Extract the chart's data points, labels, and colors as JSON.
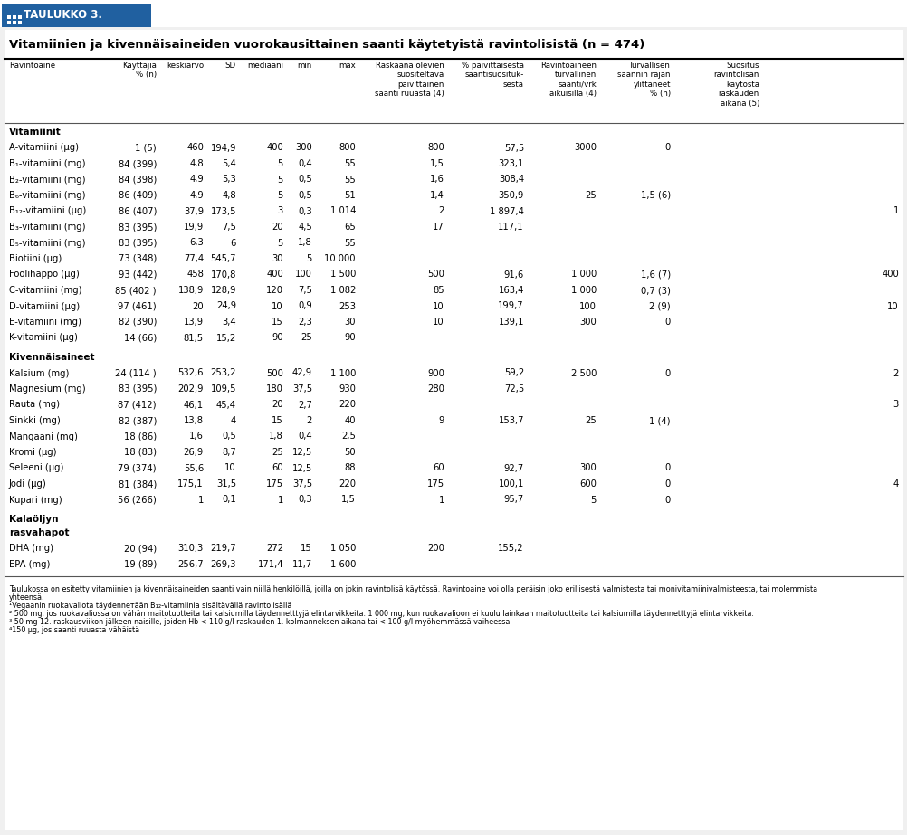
{
  "title": "Vitamiinien ja kivennäisaineiden vuorokausittainen saanti käytetyistä ravintolisistä (n = 474)",
  "table_header": "TAULUKKO 3.",
  "col_headers": [
    "Ravintoaine",
    "Käyttäjiä\n% (n)",
    "keskiarvo",
    "SD",
    "mediaani",
    "min",
    "max",
    "Raskaana olevien\nsuositeltava\npäivittäinen\nsaanti ruuasta (4)",
    "% päivittäisestä\nsaantisuosituk-\nsesta",
    "Ravintoaineen\nturvallinen\nsaanti/vrk\naikuisilla (4)",
    "Turvallisen\nsaannin rajan\nylittäneet\n% (n)",
    "Suositus\nravintolisän\nkäytöstä\nraskauden\naikana (5)"
  ],
  "section_vitamiinit": "Vitamiinit",
  "section_kivennaisaineet": "Kivennäisaineet",
  "section_kalaoljy": "Kalaöljyn\nrasvahapot",
  "rows": [
    [
      "A-vitamiini (μg)",
      "1 (5)",
      "460",
      "194,9",
      "400",
      "300",
      "800",
      "800",
      "57,5",
      "3000",
      "0",
      ""
    ],
    [
      "B₁-vitamiini (mg)",
      "84 (399)",
      "4,8",
      "5,4",
      "5",
      "0,4",
      "55",
      "1,5",
      "323,1",
      "",
      "",
      ""
    ],
    [
      "B₂-vitamiini (mg)",
      "84 (398)",
      "4,9",
      "5,3",
      "5",
      "0,5",
      "55",
      "1,6",
      "308,4",
      "",
      "",
      ""
    ],
    [
      "B₆-vitamiini (mg)",
      "86 (409)",
      "4,9",
      "4,8",
      "5",
      "0,5",
      "51",
      "1,4",
      "350,9",
      "25",
      "1,5 (6)",
      ""
    ],
    [
      "B₁₂-vitamiini (μg)",
      "86 (407)",
      "37,9",
      "173,5",
      "3",
      "0,3",
      "1 014",
      "2",
      "1 897,4",
      "",
      "",
      "1"
    ],
    [
      "B₃-vitamiini (mg)",
      "83 (395)",
      "19,9",
      "7,5",
      "20",
      "4,5",
      "65",
      "17",
      "117,1",
      "",
      "",
      ""
    ],
    [
      "B₅-vitamiini (mg)",
      "83 (395)",
      "6,3",
      "6",
      "5",
      "1,8",
      "55",
      "",
      "",
      "",
      "",
      ""
    ],
    [
      "Biotiini (μg)",
      "73 (348)",
      "77,4",
      "545,7",
      "30",
      "5",
      "10 000",
      "",
      "",
      "",
      "",
      ""
    ],
    [
      "Foolihappo (μg)",
      "93 (442)",
      "458",
      "170,8",
      "400",
      "100",
      "1 500",
      "500",
      "91,6",
      "1 000",
      "1,6 (7)",
      "400"
    ],
    [
      "C-vitamiini (mg)",
      "85 (402 )",
      "138,9",
      "128,9",
      "120",
      "7,5",
      "1 082",
      "85",
      "163,4",
      "1 000",
      "0,7 (3)",
      ""
    ],
    [
      "D-vitamiini (μg)",
      "97 (461)",
      "20",
      "24,9",
      "10",
      "0,9",
      "253",
      "10",
      "199,7",
      "100",
      "2 (9)",
      "10"
    ],
    [
      "E-vitamiini (mg)",
      "82 (390)",
      "13,9",
      "3,4",
      "15",
      "2,3",
      "30",
      "10",
      "139,1",
      "300",
      "0",
      ""
    ],
    [
      "K-vitamiini (μg)",
      "14 (66)",
      "81,5",
      "15,2",
      "90",
      "25",
      "90",
      "",
      "",
      "",
      "",
      ""
    ],
    [
      "Kalsium (mg)",
      "24 (114 )",
      "532,6",
      "253,2",
      "500",
      "42,9",
      "1 100",
      "900",
      "59,2",
      "2 500",
      "0",
      "2"
    ],
    [
      "Magnesium (mg)",
      "83 (395)",
      "202,9",
      "109,5",
      "180",
      "37,5",
      "930",
      "280",
      "72,5",
      "",
      "",
      ""
    ],
    [
      "Rauta (mg)",
      "87 (412)",
      "46,1",
      "45,4",
      "20",
      "2,7",
      "220",
      "",
      "",
      "",
      "",
      "3"
    ],
    [
      "Sinkki (mg)",
      "82 (387)",
      "13,8",
      "4",
      "15",
      "2",
      "40",
      "9",
      "153,7",
      "25",
      "1 (4)",
      ""
    ],
    [
      "Mangaani (mg)",
      "18 (86)",
      "1,6",
      "0,5",
      "1,8",
      "0,4",
      "2,5",
      "",
      "",
      "",
      "",
      ""
    ],
    [
      "Kromi (μg)",
      "18 (83)",
      "26,9",
      "8,7",
      "25",
      "12,5",
      "50",
      "",
      "",
      "",
      "",
      ""
    ],
    [
      "Seleeni (μg)",
      "79 (374)",
      "55,6",
      "10",
      "60",
      "12,5",
      "88",
      "60",
      "92,7",
      "300",
      "0",
      ""
    ],
    [
      "Jodi (μg)",
      "81 (384)",
      "175,1",
      "31,5",
      "175",
      "37,5",
      "220",
      "175",
      "100,1",
      "600",
      "0",
      "4"
    ],
    [
      "Kupari (mg)",
      "56 (266)",
      "1",
      "0,1",
      "1",
      "0,3",
      "1,5",
      "1",
      "95,7",
      "5",
      "0",
      ""
    ],
    [
      "DHA (mg)",
      "20 (94)",
      "310,3",
      "219,7",
      "272",
      "15",
      "1 050",
      "200",
      "155,2",
      "",
      "",
      ""
    ],
    [
      "EPA (mg)",
      "19 (89)",
      "256,7",
      "269,3",
      "171,4",
      "11,7",
      "1 600",
      "",
      "",
      "",
      "",
      ""
    ]
  ],
  "footnote_main1": "Taulukossa on esitetty vitamiinien ja kivennäisaineiden saanti vain niillä henkilöillä, joilla on jokin ravintolisä käytössä. Ravintoaine voi olla peräisin joko erillisestä valmistesta tai monivitamiinivalmisteesta, tai molemmista",
  "footnote_main2": "yhteensä.",
  "footnote1": "¹Vegaanin ruokavaliota täydennетään B₁₂-vitamiinia sisältävällä ravintolisällä",
  "footnote2": "² 500 mg, jos ruokavaliossa on vähän maitotuotteita tai kalsiumilla täydennetttyjä elintarvikkeita. 1 000 mg, kun ruokavalioon ei kuulu lainkaan maitotuotteita tai kalsiumilla täydennetttyjä elintarvikkeita.",
  "footnote3": "³ 50 mg 12. raskausviikon jälkeen naisille, joiden Hb < 110 g/l raskauden 1. kolmanneksen aikana tai < 100 g/l myöhemmässä vaiheessa",
  "footnote4": "⁴150 μg, jos saanti ruuasta vähäistä",
  "header_bg": "#2060a0",
  "header_text": "#ffffff"
}
